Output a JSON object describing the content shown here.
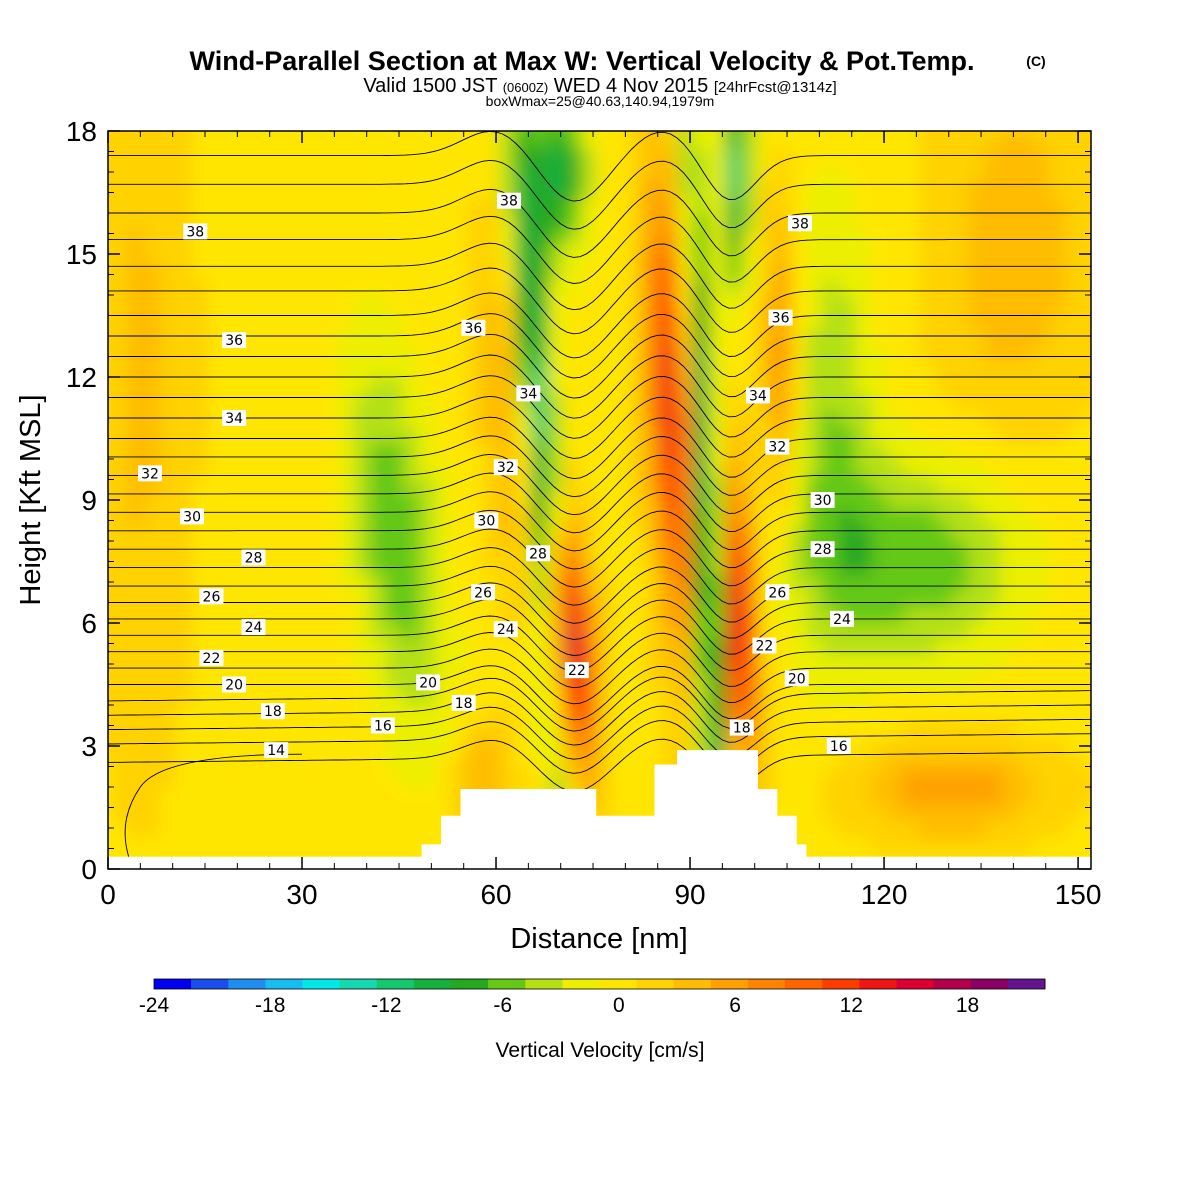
{
  "header": {
    "title": "Wind-Parallel Section at Max W: Vertical Velocity & Pot.Temp.",
    "title_mark": "(C)",
    "valid_a": "Valid 1500 JST",
    "valid_b": "(0600Z)",
    "valid_c": "WED 4 Nov 2015",
    "valid_d": "[24hrFcst@1314z]",
    "boxinfo": "boxWmax=25@40.63,140.94,1979m"
  },
  "chart_data": {
    "type": "heatmap",
    "title": "Wind-Parallel Section at Max W: Vertical Velocity & Pot.Temp.",
    "xlabel": "Distance [nm]",
    "ylabel": "Height [Kft MSL]",
    "xlim": [
      0,
      152
    ],
    "ylim": [
      0,
      18
    ],
    "x_ticks": [
      "0",
      "30",
      "60",
      "90",
      "120",
      "150"
    ],
    "y_ticks": [
      "0",
      "3",
      "6",
      "9",
      "12",
      "15",
      "18"
    ],
    "shaded_field": "Vertical Velocity [cm/s]",
    "colorbar": {
      "label": "Vertical Velocity [cm/s]",
      "tick_labels": [
        "-24",
        "-18",
        "-12",
        "-6",
        "0",
        "6",
        "12",
        "18"
      ],
      "range": [
        -24,
        22
      ],
      "bin_width": 2,
      "colors": [
        "#0000f0",
        "#1a4cf0",
        "#1e8cf0",
        "#14bef0",
        "#00e8e8",
        "#14d8b0",
        "#14c870",
        "#14b040",
        "#28a820",
        "#64c814",
        "#b4e014",
        "#ecf000",
        "#ffe600",
        "#ffd200",
        "#ffbc00",
        "#ffa000",
        "#ff8200",
        "#ff6400",
        "#ff3c00",
        "#f01414",
        "#dc0032",
        "#b4004b",
        "#8c0064",
        "#64148c"
      ]
    },
    "contour_field": "Potential Temperature (C)",
    "contour_labels": [
      {
        "text": "38",
        "x": 13.5,
        "y": 15.55
      },
      {
        "text": "38",
        "x": 62,
        "y": 16.3
      },
      {
        "text": "38",
        "x": 107,
        "y": 15.75
      },
      {
        "text": "36",
        "x": 19.5,
        "y": 12.9
      },
      {
        "text": "36",
        "x": 56.5,
        "y": 13.2
      },
      {
        "text": "36",
        "x": 104,
        "y": 13.45
      },
      {
        "text": "34",
        "x": 19.5,
        "y": 11.0
      },
      {
        "text": "34",
        "x": 65,
        "y": 11.6
      },
      {
        "text": "34",
        "x": 100.5,
        "y": 11.55
      },
      {
        "text": "32",
        "x": 6.5,
        "y": 9.65
      },
      {
        "text": "32",
        "x": 61.5,
        "y": 9.8
      },
      {
        "text": "32",
        "x": 103.5,
        "y": 10.3
      },
      {
        "text": "30",
        "x": 13,
        "y": 8.6
      },
      {
        "text": "30",
        "x": 58.5,
        "y": 8.5
      },
      {
        "text": "30",
        "x": 110.5,
        "y": 9.0
      },
      {
        "text": "28",
        "x": 22.5,
        "y": 7.6
      },
      {
        "text": "28",
        "x": 66.5,
        "y": 7.7
      },
      {
        "text": "28",
        "x": 110.5,
        "y": 7.8
      },
      {
        "text": "26",
        "x": 16,
        "y": 6.65
      },
      {
        "text": "26",
        "x": 58,
        "y": 6.75
      },
      {
        "text": "26",
        "x": 103.5,
        "y": 6.75
      },
      {
        "text": "24",
        "x": 22.5,
        "y": 5.9
      },
      {
        "text": "24",
        "x": 61.5,
        "y": 5.85
      },
      {
        "text": "24",
        "x": 113.5,
        "y": 6.1
      },
      {
        "text": "22",
        "x": 16,
        "y": 5.15
      },
      {
        "text": "22",
        "x": 72.5,
        "y": 4.85
      },
      {
        "text": "22",
        "x": 101.5,
        "y": 5.45
      },
      {
        "text": "20",
        "x": 19.5,
        "y": 4.5
      },
      {
        "text": "20",
        "x": 49.5,
        "y": 4.55
      },
      {
        "text": "20",
        "x": 106.5,
        "y": 4.65
      },
      {
        "text": "18",
        "x": 25.5,
        "y": 3.85
      },
      {
        "text": "18",
        "x": 55,
        "y": 4.05
      },
      {
        "text": "18",
        "x": 98,
        "y": 3.45
      },
      {
        "text": "16",
        "x": 42.5,
        "y": 3.5
      },
      {
        "text": "16",
        "x": 113,
        "y": 3.0
      },
      {
        "text": "14",
        "x": 26,
        "y": 2.9
      }
    ],
    "terrain_steps": [
      [
        48.5,
        0.6
      ],
      [
        51.5,
        1.3
      ],
      [
        54.5,
        1.95
      ],
      [
        59,
        1.95
      ],
      [
        75.5,
        1.3
      ],
      [
        81.5,
        1.3
      ],
      [
        84.5,
        2.55
      ],
      [
        88,
        2.9
      ],
      [
        97.5,
        2.9
      ],
      [
        100.5,
        1.95
      ],
      [
        103.5,
        1.3
      ],
      [
        106.5,
        0.6
      ],
      [
        108,
        0.6
      ]
    ],
    "grid": false
  }
}
